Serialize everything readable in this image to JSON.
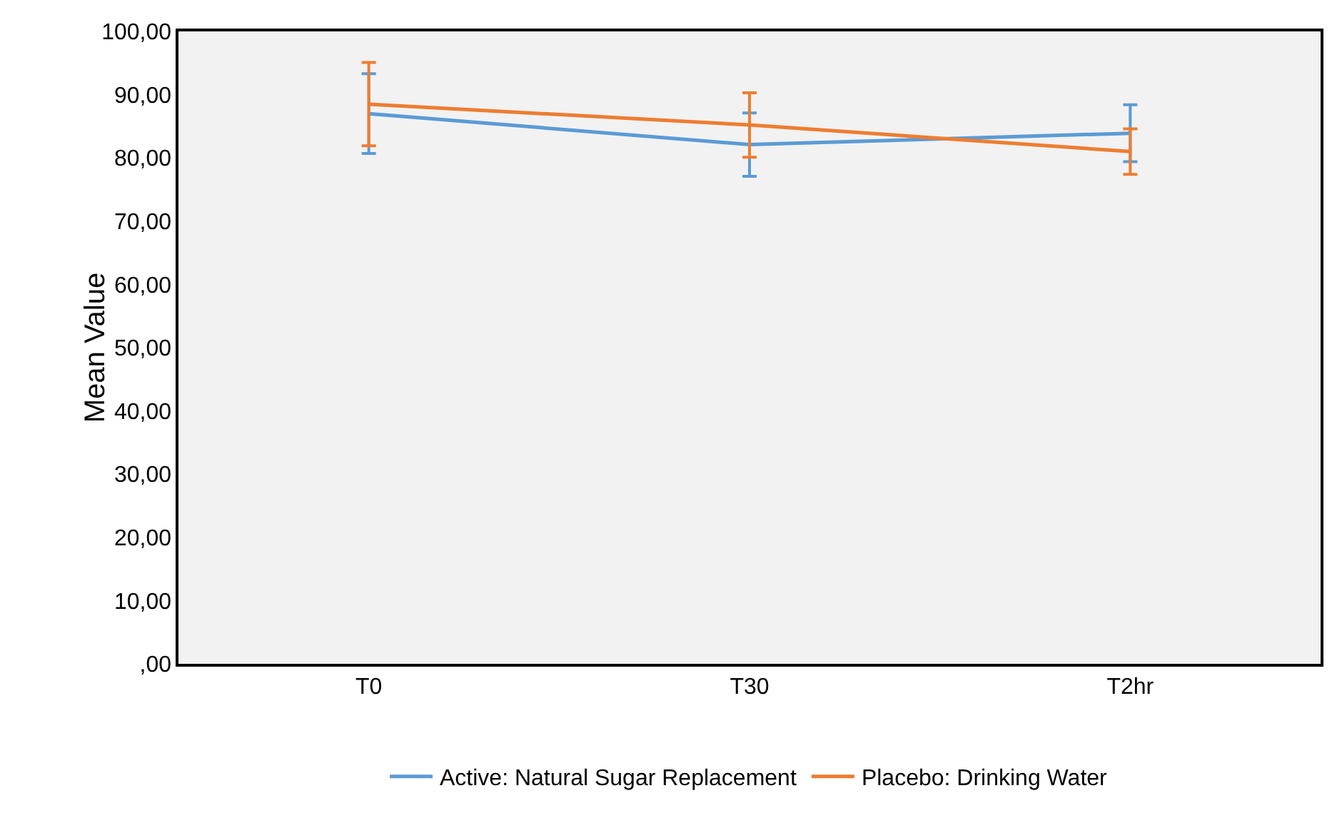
{
  "chart_data": {
    "type": "line",
    "ylabel": "Mean Value",
    "categories": [
      "T0",
      "T30",
      "T2hr"
    ],
    "series": [
      {
        "name": "Active: Natural Sugar Replacement",
        "color": "#5b9bd5",
        "values": [
          87.0,
          82.1,
          83.9
        ],
        "errors": [
          6.3,
          5.0,
          4.5
        ]
      },
      {
        "name": "Placebo: Drinking Water",
        "color": "#ed7d31",
        "values": [
          88.5,
          85.2,
          81.0
        ],
        "errors": [
          6.6,
          5.1,
          3.6
        ]
      }
    ],
    "ylim": [
      0,
      100
    ],
    "yticks": [
      {
        "value": 0,
        "label": ",00"
      },
      {
        "value": 10,
        "label": "10,00"
      },
      {
        "value": 20,
        "label": "20,00"
      },
      {
        "value": 30,
        "label": "30,00"
      },
      {
        "value": 40,
        "label": "40,00"
      },
      {
        "value": 50,
        "label": "50,00"
      },
      {
        "value": 60,
        "label": "60,00"
      },
      {
        "value": 70,
        "label": "70,00"
      },
      {
        "value": 80,
        "label": "80,00"
      },
      {
        "value": 90,
        "label": "90,00"
      },
      {
        "value": 100,
        "label": "100,00"
      }
    ],
    "grid": false,
    "legend": "bottom",
    "marker": "none",
    "line_style": "solid"
  }
}
